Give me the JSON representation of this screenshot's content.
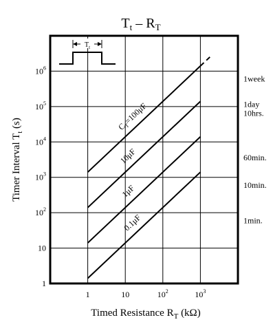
{
  "chart_data": {
    "type": "line",
    "title": {
      "main": "T",
      "sub": "t",
      "sep": " – ",
      "main2": "R",
      "sub2": "T"
    },
    "xlabel": {
      "text": "Timed Resistance  R",
      "sub": "T",
      "unit": "  (kΩ)"
    },
    "ylabel": {
      "text": "Timer Interval  T",
      "sub": "t",
      "unit": "  (s)"
    },
    "x_scale": "log",
    "y_scale": "log",
    "xlim": [
      0.1,
      10000
    ],
    "ylim": [
      1,
      10000000
    ],
    "grid": true,
    "x_ticks": [
      {
        "value": 1,
        "base": "1",
        "exp": ""
      },
      {
        "value": 10,
        "base": "10",
        "exp": ""
      },
      {
        "value": 100,
        "base": "10",
        "exp": "2"
      },
      {
        "value": 1000,
        "base": "10",
        "exp": "3"
      }
    ],
    "y_ticks": [
      {
        "value": 1,
        "base": "1",
        "exp": ""
      },
      {
        "value": 10,
        "base": "10",
        "exp": ""
      },
      {
        "value": 100,
        "base": "10",
        "exp": "2"
      },
      {
        "value": 1000,
        "base": "10",
        "exp": "3"
      },
      {
        "value": 10000,
        "base": "10",
        "exp": "4"
      },
      {
        "value": 100000,
        "base": "10",
        "exp": "5"
      },
      {
        "value": 1000000,
        "base": "10",
        "exp": "6"
      }
    ],
    "right_labels": [
      {
        "value": 604800,
        "lines": [
          "1week"
        ]
      },
      {
        "value": 86400,
        "lines": [
          "1day",
          "10hrs."
        ]
      },
      {
        "value": 3600,
        "lines": [
          "60min."
        ]
      },
      {
        "value": 600,
        "lines": [
          "10min."
        ]
      },
      {
        "value": 60,
        "lines": [
          "1min."
        ]
      }
    ],
    "series": [
      {
        "label_main": "C",
        "label_sub": "T",
        "label_rest": "=100μF",
        "x": [
          1,
          1000
        ],
        "y": [
          1400,
          1400000
        ],
        "dashed_to": [
          2000,
          2800000
        ]
      },
      {
        "label_main": "10μF",
        "label_sub": "",
        "label_rest": "",
        "x": [
          1,
          1000
        ],
        "y": [
          140,
          140000
        ]
      },
      {
        "label_main": "1μF",
        "label_sub": "",
        "label_rest": "",
        "x": [
          1,
          1000
        ],
        "y": [
          14,
          14000
        ]
      },
      {
        "label_main": "0.1μF",
        "label_sub": "",
        "label_rest": "",
        "x": [
          1,
          1000
        ],
        "y": [
          1.4,
          1400
        ]
      }
    ],
    "inset": {
      "label_main": "T",
      "label_sub": "t"
    }
  }
}
